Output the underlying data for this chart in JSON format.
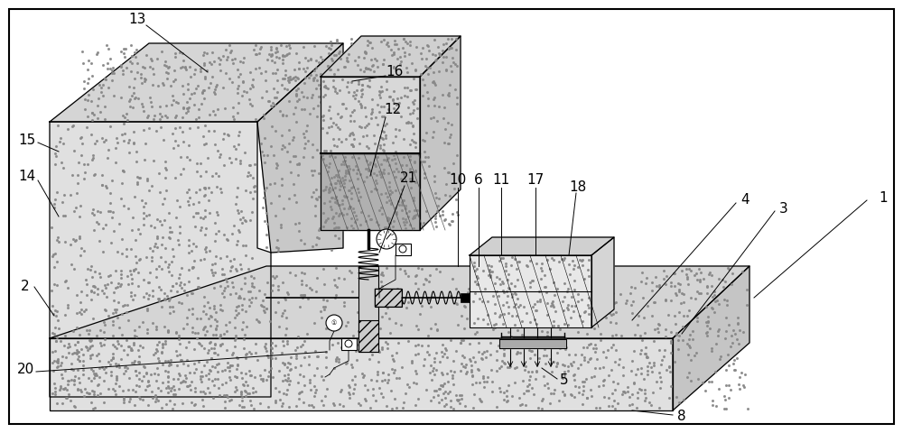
{
  "bg_color": "#ffffff",
  "line_color": "#000000",
  "label_fontsize": 11,
  "dot_color": "#888888",
  "dot_size": 1.5
}
